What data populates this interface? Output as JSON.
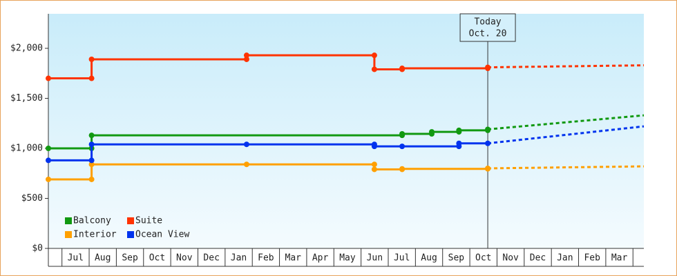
{
  "chart_data": {
    "type": "step-line",
    "xlim": [
      -0.5,
      21.4
    ],
    "ylim": [
      0,
      2345
    ],
    "yticks": [
      {
        "value": 0,
        "label": "$0"
      },
      {
        "value": 500,
        "label": "$500"
      },
      {
        "value": 1000,
        "label": "$1,000"
      },
      {
        "value": 1500,
        "label": "$1,500"
      },
      {
        "value": 2000,
        "label": "$2,000"
      }
    ],
    "xticks": [
      {
        "value": 0,
        "label": "Jul"
      },
      {
        "value": 1,
        "label": "Aug"
      },
      {
        "value": 2,
        "label": "Sep"
      },
      {
        "value": 3,
        "label": "Oct"
      },
      {
        "value": 4,
        "label": "Nov"
      },
      {
        "value": 5,
        "label": "Dec"
      },
      {
        "value": 6,
        "label": "Jan"
      },
      {
        "value": 7,
        "label": "Feb"
      },
      {
        "value": 8,
        "label": "Mar"
      },
      {
        "value": 9,
        "label": "Apr"
      },
      {
        "value": 10,
        "label": "May"
      },
      {
        "value": 11,
        "label": "Jun"
      },
      {
        "value": 12,
        "label": "Jul"
      },
      {
        "value": 13,
        "label": "Aug"
      },
      {
        "value": 14,
        "label": "Sep"
      },
      {
        "value": 15,
        "label": "Oct"
      },
      {
        "value": 16,
        "label": "Nov"
      },
      {
        "value": 17,
        "label": "Dec"
      },
      {
        "value": 18,
        "label": "Jan"
      },
      {
        "value": 19,
        "label": "Feb"
      },
      {
        "value": 20,
        "label": "Mar"
      }
    ],
    "today": {
      "x": 15.66,
      "label": "Today",
      "date": "Oct. 20"
    },
    "legend": "bottom-left",
    "series": [
      {
        "name": "Balcony",
        "color": "#119911",
        "x": [
          -0.5,
          1.09,
          12.51,
          13.6,
          14.6,
          15.66
        ],
        "values": [
          1000,
          1130,
          1145,
          1165,
          1180,
          1190
        ],
        "forecast_x": [
          15.66,
          21.4
        ],
        "forecast_values": [
          1190,
          1330
        ]
      },
      {
        "name": "Suite",
        "color": "#ff3300",
        "x": [
          -0.5,
          1.09,
          6.79,
          11.49,
          12.51,
          15.66
        ],
        "values": [
          1700,
          1890,
          1930,
          1790,
          1800,
          1810
        ],
        "forecast_x": [
          15.66,
          18.5,
          21.4
        ],
        "forecast_values": [
          1810,
          1820,
          1830
        ]
      },
      {
        "name": "Interior",
        "color": "#ffa000",
        "x": [
          -0.5,
          1.09,
          6.79,
          11.49,
          12.51,
          15.66
        ],
        "values": [
          690,
          840,
          840,
          790,
          795,
          800
        ],
        "forecast_x": [
          15.66,
          18.5,
          21.4
        ],
        "forecast_values": [
          800,
          810,
          820
        ]
      },
      {
        "name": "Ocean View",
        "color": "#0033ee",
        "x": [
          -0.5,
          1.09,
          6.79,
          11.49,
          12.51,
          14.6,
          15.66
        ],
        "values": [
          880,
          1040,
          1040,
          1020,
          1020,
          1050,
          1050
        ],
        "forecast_x": [
          15.66,
          21.4
        ],
        "forecast_values": [
          1050,
          1220
        ]
      }
    ]
  }
}
